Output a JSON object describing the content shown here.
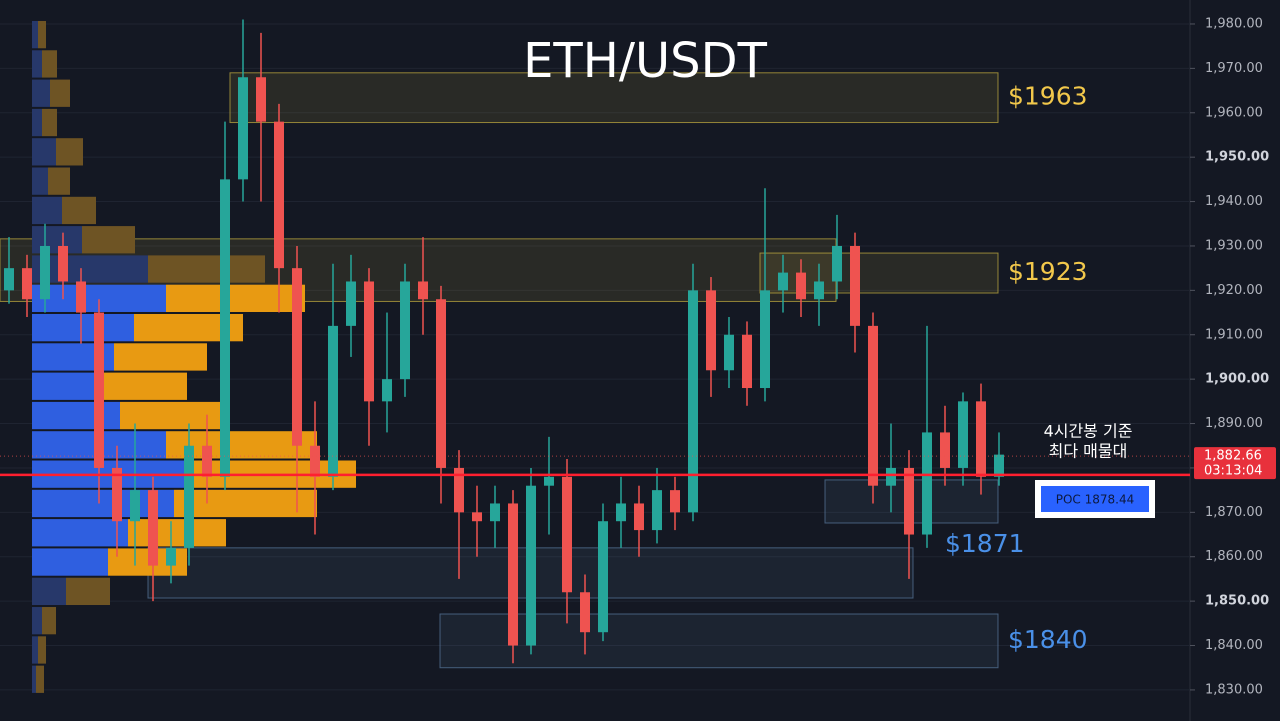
{
  "chart_data": {
    "type": "candlestick",
    "title": "ETH/USDT",
    "ylim": [
      1823,
      1985.4
    ],
    "yticks": [
      {
        "value": 1830,
        "label": "1,830.00"
      },
      {
        "value": 1840,
        "label": "1,840.00"
      },
      {
        "value": 1850,
        "label": "1,850.00"
      },
      {
        "value": 1860,
        "label": "1,860.00"
      },
      {
        "value": 1870,
        "label": "1,870.00"
      },
      {
        "value": 1880,
        "label": "1,880.00"
      },
      {
        "value": 1890,
        "label": "1,890.00"
      },
      {
        "value": 1900,
        "label": "1,900.00"
      },
      {
        "value": 1910,
        "label": "1,910.00"
      },
      {
        "value": 1920,
        "label": "1,920.00"
      },
      {
        "value": 1930,
        "label": "1,930.00"
      },
      {
        "value": 1940,
        "label": "1,940.00"
      },
      {
        "value": 1950,
        "label": "1,950.00"
      },
      {
        "value": 1960,
        "label": "1,960.00"
      },
      {
        "value": 1970,
        "label": "1,970.00"
      },
      {
        "value": 1980,
        "label": "1,980.00"
      }
    ],
    "grid": true,
    "up_color": "#26a69a",
    "down_color": "#ef5350",
    "open": [
      1920,
      1925,
      1918,
      1930,
      1922,
      1915,
      1880,
      1868,
      1875,
      1858,
      1862,
      1885,
      1878,
      1945,
      1968,
      1958,
      1925,
      1885,
      1878,
      1912,
      1922,
      1895,
      1900,
      1922,
      1918,
      1880,
      1870,
      1868,
      1872,
      1840,
      1876,
      1878,
      1852,
      1843,
      1868,
      1872,
      1866,
      1875,
      1870,
      1920,
      1902,
      1910,
      1898,
      1920,
      1924,
      1918,
      1922,
      1930,
      1912,
      1876,
      1880,
      1865,
      1888,
      1880,
      1895,
      1878
    ],
    "high": [
      1932,
      1928,
      1935,
      1933,
      1925,
      1918,
      1885,
      1890,
      1878,
      1868,
      1890,
      1892,
      1958,
      1981,
      1978,
      1962,
      1930,
      1895,
      1926,
      1928,
      1925,
      1915,
      1926,
      1932,
      1921,
      1884,
      1876,
      1876,
      1875,
      1880,
      1887,
      1882,
      1856,
      1872,
      1878,
      1876,
      1880,
      1878,
      1926,
      1923,
      1914,
      1913,
      1943,
      1928,
      1927,
      1926,
      1937,
      1933,
      1915,
      1890,
      1884,
      1912,
      1894,
      1897,
      1899,
      1888
    ],
    "low": [
      1917,
      1914,
      1915,
      1918,
      1908,
      1872,
      1860,
      1858,
      1850,
      1854,
      1858,
      1872,
      1875,
      1940,
      1940,
      1915,
      1870,
      1865,
      1875,
      1905,
      1885,
      1888,
      1896,
      1910,
      1872,
      1855,
      1860,
      1862,
      1836,
      1838,
      1865,
      1845,
      1838,
      1841,
      1862,
      1860,
      1863,
      1866,
      1868,
      1896,
      1898,
      1894,
      1895,
      1915,
      1914,
      1912,
      1918,
      1906,
      1872,
      1870,
      1855,
      1862,
      1876,
      1876,
      1874,
      1876
    ],
    "close": [
      1925,
      1918,
      1930,
      1922,
      1915,
      1880,
      1868,
      1875,
      1858,
      1862,
      1885,
      1878,
      1945,
      1968,
      1958,
      1925,
      1885,
      1878,
      1912,
      1922,
      1895,
      1900,
      1922,
      1918,
      1880,
      1870,
      1868,
      1872,
      1840,
      1876,
      1878,
      1852,
      1843,
      1868,
      1872,
      1866,
      1875,
      1870,
      1920,
      1902,
      1910,
      1898,
      1920,
      1924,
      1918,
      1922,
      1930,
      1912,
      1876,
      1880,
      1865,
      1888,
      1880,
      1895,
      1878,
      1883
    ],
    "volume_profile": {
      "bins": [
        1980.9,
        1974.3,
        1967.7,
        1961.1,
        1954.5,
        1947.9,
        1941.3,
        1934.7,
        1928.1,
        1921.5,
        1914.9,
        1908.3,
        1901.7,
        1895.1,
        1888.5,
        1881.9,
        1875.3,
        1868.7,
        1862.1,
        1855.5,
        1848.9,
        1842.3,
        1835.7,
        1829.1
      ],
      "value_area": [
        1855.5,
        1921.5
      ],
      "series": [
        {
          "color": "#2f5fe0",
          "dim_color": "#27386a",
          "values": [
            6,
            10,
            18,
            10,
            24,
            16,
            30,
            50,
            116,
            134,
            102,
            82,
            70,
            88,
            134,
            160,
            142,
            96,
            76,
            34,
            10,
            6,
            4
          ]
        },
        {
          "color": "#e89a12",
          "dim_color": "#6e5424",
          "values": [
            8,
            15,
            20,
            15,
            27,
            22,
            34,
            53,
            117,
            139,
            109,
            93,
            85,
            100,
            151,
            164,
            143,
            98,
            79,
            44,
            14,
            8,
            8
          ]
        }
      ]
    },
    "zones": [
      {
        "low": 1957.8,
        "high": 1969,
        "color": "#c8b040",
        "label": "$1963",
        "label_color": "#f2c84b"
      },
      {
        "low": 1917.5,
        "high": 1931.6,
        "color": "#c8b040"
      },
      {
        "low": 1919.4,
        "high": 1928.4,
        "color": "#c8b040",
        "label": "$1923",
        "label_color": "#f2c84b"
      },
      {
        "low": 1867.6,
        "high": 1877.3,
        "color": "#5a7aa0",
        "label": "$1871",
        "label_color": "#4a90e8"
      },
      {
        "low": 1850.7,
        "high": 1862,
        "color": "#5a7aa0"
      },
      {
        "low": 1835,
        "high": 1847.1,
        "color": "#5a7aa0",
        "label": "$1840",
        "label_color": "#4a90e8"
      }
    ],
    "poc": {
      "value": 1878.44,
      "label": "POC  1878.44",
      "color": "#ff1f2f"
    },
    "annotation": [
      "4시간봉 기준",
      "최다 매물대"
    ],
    "last_price": {
      "value": 1882.66,
      "label": "1,882.66"
    },
    "countdown": "03:13:04"
  }
}
